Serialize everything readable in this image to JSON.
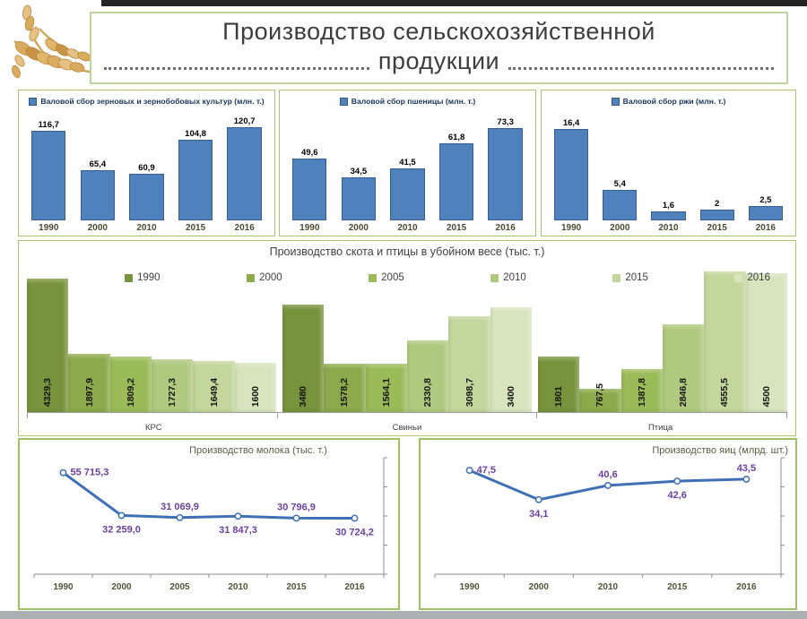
{
  "page": {
    "title_line1": "Производство сельскохозяйственной",
    "title_line2": "продукции"
  },
  "colors": {
    "bar_blue": "#4f81bd",
    "bar_blue_border": "#36597f",
    "box_border_green": "#a9c46f",
    "line_blue": "#3f6fb4",
    "label_purple": "#6b3fa0",
    "axis_gray": "#8c8c8c",
    "series_greens": [
      "#77933c",
      "#8caa4b",
      "#9bbb59",
      "#afc97e",
      "#c3d69b",
      "#d8e4bd"
    ]
  },
  "chart_data": [
    {
      "type": "bar",
      "legend": "Валовой сбор зерновых и зернобобовых культур (млн. т.)",
      "categories": [
        "1990",
        "2000",
        "2010",
        "2015",
        "2016"
      ],
      "values": [
        116.7,
        65.4,
        60.9,
        104.8,
        120.7
      ],
      "labels": [
        "116,7",
        "65,4",
        "60,9",
        "104,8",
        "120,7"
      ],
      "ylim": [
        0,
        130
      ]
    },
    {
      "type": "bar",
      "legend": "Валовой сбор пшеницы (млн. т.)",
      "categories": [
        "1990",
        "2000",
        "2010",
        "2015",
        "2016"
      ],
      "values": [
        49.6,
        34.5,
        41.5,
        61.8,
        73.3
      ],
      "labels": [
        "49,6",
        "34,5",
        "41,5",
        "61,8",
        "73,3"
      ],
      "ylim": [
        0,
        80
      ]
    },
    {
      "type": "bar",
      "legend": "Валовой сбор ржи (млн. т.)",
      "categories": [
        "1990",
        "2000",
        "2010",
        "2015",
        "2016"
      ],
      "values": [
        16.4,
        5.4,
        1.6,
        2,
        2.5
      ],
      "labels": [
        "16,4",
        "5,4",
        "1,6",
        "2",
        "2,5"
      ],
      "ylim": [
        0,
        18
      ]
    },
    {
      "type": "bar",
      "subtype": "grouped",
      "title": "Производство скота и птицы в убойном весе (тыс. т.)",
      "groups": [
        "КРС",
        "Свиньи",
        "Птица"
      ],
      "series": [
        {
          "name": "1990",
          "values": [
            4329.3,
            3480,
            1801
          ],
          "labels": [
            "4329,3",
            "3480",
            "1801"
          ]
        },
        {
          "name": "2000",
          "values": [
            1897.9,
            1578.2,
            767.5
          ],
          "labels": [
            "1897,9",
            "1578,2",
            "767,5"
          ]
        },
        {
          "name": "2005",
          "values": [
            1809.2,
            1564.1,
            1387.8
          ],
          "labels": [
            "1809,2",
            "1564,1",
            "1387,8"
          ]
        },
        {
          "name": "2010",
          "values": [
            1727.3,
            2330.8,
            2846.8
          ],
          "labels": [
            "1727,3",
            "2330,8",
            "2846,8"
          ]
        },
        {
          "name": "2015",
          "values": [
            1649.4,
            3098.7,
            4555.5
          ],
          "labels": [
            "1649,4",
            "3098,7",
            "4555,5"
          ]
        },
        {
          "name": "2016",
          "values": [
            1600,
            3400,
            4500
          ],
          "labels": [
            "1600",
            "3400",
            "4500"
          ]
        }
      ],
      "ylim": [
        0,
        5000
      ],
      "legend_position": "top"
    },
    {
      "type": "line",
      "title": "Производство молока (тыс. т.)",
      "x": [
        "1990",
        "2000",
        "2005",
        "2010",
        "2015",
        "2016"
      ],
      "values": [
        55715.3,
        32259.0,
        31069.9,
        31847.3,
        30796.9,
        30724.2
      ],
      "labels": [
        "55 715,3",
        "32 259,0",
        "31 069,9",
        "31 847,3",
        "30 796,9",
        "30 724,2"
      ],
      "label_pos": [
        "right",
        "below",
        "above",
        "below",
        "above",
        "below"
      ],
      "ylim": [
        0,
        60000
      ]
    },
    {
      "type": "line",
      "title": "Производство яиц (млрд. шт.)",
      "x": [
        "1990",
        "2000",
        "2010",
        "2015",
        "2016"
      ],
      "values": [
        47.5,
        34.1,
        40.6,
        42.6,
        43.5
      ],
      "labels": [
        "47,5",
        "34,1",
        "40,6",
        "42,6",
        "43,5"
      ],
      "label_pos": [
        "right",
        "below",
        "above",
        "below",
        "above"
      ],
      "ylim": [
        0,
        50
      ]
    }
  ]
}
